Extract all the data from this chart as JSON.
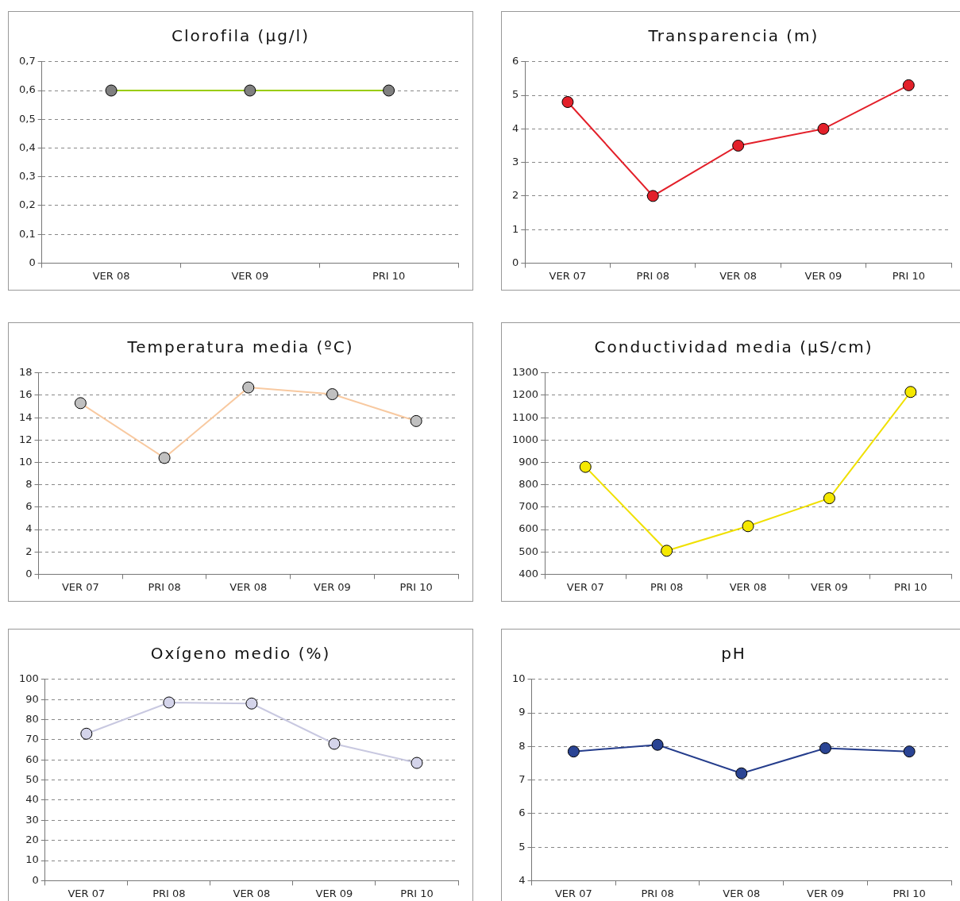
{
  "chart_data": [
    {
      "type": "line",
      "title": "Clorofila (µg/l)",
      "categories": [
        "VER 08",
        "VER 09",
        "PRI 10"
      ],
      "series": [
        {
          "color": "#99cc00",
          "colors": [
            "#808080",
            "#808080",
            "#808080"
          ],
          "values": [
            0.6,
            0.6,
            0.6
          ]
        }
      ],
      "ylim": [
        0,
        0.7
      ],
      "yticks": [
        0,
        {
          "value": 0.1,
          "label": "0,1"
        },
        {
          "value": 0.2,
          "label": "0,2"
        },
        {
          "value": 0.3,
          "label": "0,3"
        },
        {
          "value": 0.4,
          "label": "0,4"
        },
        {
          "value": 0.5,
          "label": "0,5"
        },
        {
          "value": 0.6,
          "label": "0,6"
        },
        {
          "value": 0.7,
          "label": "0,7"
        }
      ],
      "grid": "y",
      "marker": "circle",
      "legend": false
    },
    {
      "type": "line",
      "title": "Transparencia (m)",
      "categories": [
        "VER 07",
        "PRI 08",
        "VER 08",
        "VER 09",
        "PRI 10"
      ],
      "series": [
        {
          "color": "#e3202a",
          "colors": [
            "#e3202a",
            "#e3202a",
            "#e3202a",
            "#e3202a",
            "#e3202a"
          ],
          "values": [
            4.8,
            2.0,
            3.5,
            4.0,
            5.3
          ]
        }
      ],
      "ylim": [
        0,
        6
      ],
      "yticks": [
        0,
        1,
        2,
        3,
        4,
        5,
        6
      ],
      "grid": "y",
      "marker": "circle",
      "legend": false
    },
    {
      "type": "line",
      "title": "Temperatura media (ºC)",
      "categories": [
        "VER 07",
        "PRI 08",
        "VER 08",
        "VER 09",
        "PRI 10"
      ],
      "series": [
        {
          "color": "#f8c9a0",
          "colors": [
            "#c0c0c0",
            "#c0c0c0",
            "#c0c0c0",
            "#c0c0c0",
            "#c0c0c0"
          ],
          "values": [
            15.3,
            10.4,
            16.7,
            16.1,
            13.7
          ]
        }
      ],
      "ylim": [
        0,
        18
      ],
      "yticks": [
        0,
        2,
        4,
        6,
        8,
        10,
        12,
        14,
        16,
        18
      ],
      "grid": "y",
      "marker": "circle",
      "legend": false
    },
    {
      "type": "line",
      "title": "Conductividad media (µS/cm)",
      "categories": [
        "VER 07",
        "PRI 08",
        "VER 08",
        "VER 09",
        "PRI 10"
      ],
      "series": [
        {
          "color": "#f0e000",
          "colors": [
            "#f5e800",
            "#f5e800",
            "#f5e800",
            "#f5e800",
            "#f5e800"
          ],
          "values": [
            880,
            505,
            615,
            740,
            1215
          ]
        }
      ],
      "ylim": [
        400,
        1300
      ],
      "yticks": [
        400,
        500,
        600,
        700,
        800,
        900,
        1000,
        1100,
        1200,
        1300
      ],
      "grid": "y",
      "marker": "circle",
      "legend": false
    },
    {
      "type": "line",
      "title": "Oxígeno medio (%)",
      "categories": [
        "VER 07",
        "PRI 08",
        "VER 08",
        "VER 09",
        "PRI 10"
      ],
      "series": [
        {
          "color": "#c8c8e0",
          "colors": [
            "#d4d4ea",
            "#d4d4ea",
            "#d4d4ea",
            "#d4d4ea",
            "#d4d4ea"
          ],
          "values": [
            73,
            88.5,
            88,
            68,
            58.5
          ]
        }
      ],
      "ylim": [
        0,
        100
      ],
      "yticks": [
        0,
        10,
        20,
        30,
        40,
        50,
        60,
        70,
        80,
        90,
        100
      ],
      "grid": "y",
      "marker": "circle",
      "legend": false
    },
    {
      "type": "line",
      "title": "pH",
      "categories": [
        "VER 07",
        "PRI 08",
        "VER 08",
        "VER 09",
        "PRI 10"
      ],
      "series": [
        {
          "color": "#253d8c",
          "colors": [
            "#2a4494",
            "#2a4494",
            "#2a4494",
            "#2a4494",
            "#2a4494"
          ],
          "values": [
            7.85,
            8.05,
            7.2,
            7.95,
            7.85
          ]
        }
      ],
      "ylim": [
        4,
        10
      ],
      "yticks": [
        4,
        5,
        6,
        7,
        8,
        9,
        10
      ],
      "grid": "y",
      "marker": "circle",
      "legend": false
    }
  ]
}
